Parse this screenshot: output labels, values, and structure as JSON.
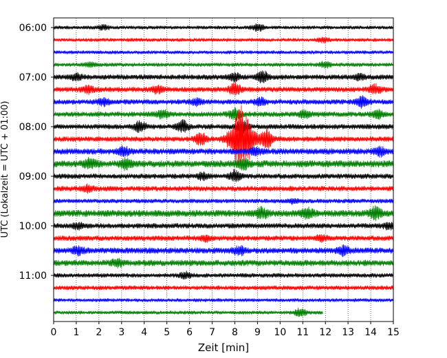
{
  "chart_data": {
    "type": "line",
    "title": "",
    "xlabel": "Zeit  [min]",
    "ylabel": "UTC (Lokalzeit = UTC + 01:00)",
    "xlim": [
      0,
      15
    ],
    "x_ticks": [
      "0",
      "1",
      "2",
      "3",
      "4",
      "5",
      "6",
      "7",
      "8",
      "9",
      "10",
      "11",
      "12",
      "13",
      "14",
      "15"
    ],
    "y_tick_labels": [
      "06:00",
      "07:00",
      "08:00",
      "09:00",
      "10:00",
      "11:00"
    ],
    "start_time": "06:00",
    "row_interval_minutes": 15,
    "grid": "vertical dotted at each minute",
    "colors": [
      "#000000",
      "#ff0000",
      "#0000ff",
      "#008000"
    ],
    "rows": [
      {
        "time": "06:00",
        "color": "#000000",
        "amplitude": 2.0,
        "end_minute": 15,
        "bursts": [
          {
            "t": 2.2,
            "amp": 3
          },
          {
            "t": 9.0,
            "amp": 5
          }
        ]
      },
      {
        "time": "06:15",
        "color": "#ff0000",
        "amplitude": 2.0,
        "end_minute": 15,
        "bursts": [
          {
            "t": 11.9,
            "amp": 3
          }
        ]
      },
      {
        "time": "06:30",
        "color": "#0000ff",
        "amplitude": 2.0,
        "end_minute": 15,
        "bursts": []
      },
      {
        "time": "06:45",
        "color": "#008000",
        "amplitude": 2.2,
        "end_minute": 15,
        "bursts": [
          {
            "t": 1.6,
            "amp": 3
          },
          {
            "t": 12.0,
            "amp": 4
          }
        ]
      },
      {
        "time": "07:00",
        "color": "#000000",
        "amplitude": 3.0,
        "end_minute": 15,
        "bursts": [
          {
            "t": 1.0,
            "amp": 5
          },
          {
            "t": 8.0,
            "amp": 5
          },
          {
            "t": 9.2,
            "amp": 8
          },
          {
            "t": 13.5,
            "amp": 4
          }
        ]
      },
      {
        "time": "07:15",
        "color": "#ff0000",
        "amplitude": 3.0,
        "end_minute": 15,
        "bursts": [
          {
            "t": 1.5,
            "amp": 5
          },
          {
            "t": 4.6,
            "amp": 5
          },
          {
            "t": 8.0,
            "amp": 8
          },
          {
            "t": 14.2,
            "amp": 6
          }
        ]
      },
      {
        "time": "07:30",
        "color": "#0000ff",
        "amplitude": 3.0,
        "end_minute": 15,
        "bursts": [
          {
            "t": 2.2,
            "amp": 4
          },
          {
            "t": 6.3,
            "amp": 4
          },
          {
            "t": 9.1,
            "amp": 5
          },
          {
            "t": 13.6,
            "amp": 7
          }
        ]
      },
      {
        "time": "07:45",
        "color": "#008000",
        "amplitude": 3.0,
        "end_minute": 15,
        "bursts": [
          {
            "t": 4.8,
            "amp": 5
          },
          {
            "t": 8.0,
            "amp": 8
          },
          {
            "t": 11.1,
            "amp": 5
          },
          {
            "t": 14.3,
            "amp": 5
          }
        ]
      },
      {
        "time": "08:00",
        "color": "#000000",
        "amplitude": 3.0,
        "end_minute": 15,
        "bursts": [
          {
            "t": 3.8,
            "amp": 7
          },
          {
            "t": 5.7,
            "amp": 8
          },
          {
            "t": 8.3,
            "amp": 9
          }
        ]
      },
      {
        "time": "08:15",
        "color": "#ff0000",
        "amplitude": 3.0,
        "end_minute": 15,
        "bursts": [
          {
            "t": 6.5,
            "amp": 8
          },
          {
            "t": 8.3,
            "amp": 46
          },
          {
            "t": 9.4,
            "amp": 14
          }
        ]
      },
      {
        "time": "08:30",
        "color": "#0000ff",
        "amplitude": 3.5,
        "end_minute": 15,
        "bursts": [
          {
            "t": 3.1,
            "amp": 6
          },
          {
            "t": 8.9,
            "amp": 5
          },
          {
            "t": 14.4,
            "amp": 6
          }
        ]
      },
      {
        "time": "08:45",
        "color": "#008000",
        "amplitude": 4.0,
        "end_minute": 15,
        "bursts": [
          {
            "t": 1.6,
            "amp": 7
          },
          {
            "t": 3.2,
            "amp": 6
          },
          {
            "t": 8.4,
            "amp": 7
          }
        ]
      },
      {
        "time": "09:00",
        "color": "#000000",
        "amplitude": 3.0,
        "end_minute": 15,
        "bursts": [
          {
            "t": 6.6,
            "amp": 4
          },
          {
            "t": 8.0,
            "amp": 7
          }
        ]
      },
      {
        "time": "09:15",
        "color": "#ff0000",
        "amplitude": 3.0,
        "end_minute": 15,
        "bursts": [
          {
            "t": 1.5,
            "amp": 4
          }
        ]
      },
      {
        "time": "09:30",
        "color": "#0000ff",
        "amplitude": 2.5,
        "end_minute": 15,
        "bursts": [
          {
            "t": 10.6,
            "amp": 3
          }
        ]
      },
      {
        "time": "09:45",
        "color": "#008000",
        "amplitude": 4.0,
        "end_minute": 15,
        "bursts": [
          {
            "t": 9.2,
            "amp": 7
          },
          {
            "t": 11.2,
            "amp": 6
          },
          {
            "t": 14.2,
            "amp": 8
          }
        ]
      },
      {
        "time": "10:00",
        "color": "#000000",
        "amplitude": 3.0,
        "end_minute": 15,
        "bursts": [
          {
            "t": 1.1,
            "amp": 4
          },
          {
            "t": 14.8,
            "amp": 4
          }
        ]
      },
      {
        "time": "10:15",
        "color": "#ff0000",
        "amplitude": 3.0,
        "end_minute": 15,
        "bursts": [
          {
            "t": 6.7,
            "amp": 4
          },
          {
            "t": 11.8,
            "amp": 4
          }
        ]
      },
      {
        "time": "10:30",
        "color": "#0000ff",
        "amplitude": 3.5,
        "end_minute": 15,
        "bursts": [
          {
            "t": 1.1,
            "amp": 5
          },
          {
            "t": 8.2,
            "amp": 5
          },
          {
            "t": 12.8,
            "amp": 6
          }
        ]
      },
      {
        "time": "10:45",
        "color": "#008000",
        "amplitude": 3.5,
        "end_minute": 15,
        "bursts": [
          {
            "t": 2.8,
            "amp": 4
          }
        ]
      },
      {
        "time": "11:00",
        "color": "#000000",
        "amplitude": 2.5,
        "end_minute": 15,
        "bursts": [
          {
            "t": 5.8,
            "amp": 4
          }
        ]
      },
      {
        "time": "11:15",
        "color": "#ff0000",
        "amplitude": 2.5,
        "end_minute": 15,
        "bursts": []
      },
      {
        "time": "11:30",
        "color": "#0000ff",
        "amplitude": 2.0,
        "end_minute": 15,
        "bursts": []
      },
      {
        "time": "11:45",
        "color": "#008000",
        "amplitude": 2.0,
        "end_minute": 11.9,
        "bursts": [
          {
            "t": 10.9,
            "amp": 6
          }
        ]
      }
    ]
  }
}
